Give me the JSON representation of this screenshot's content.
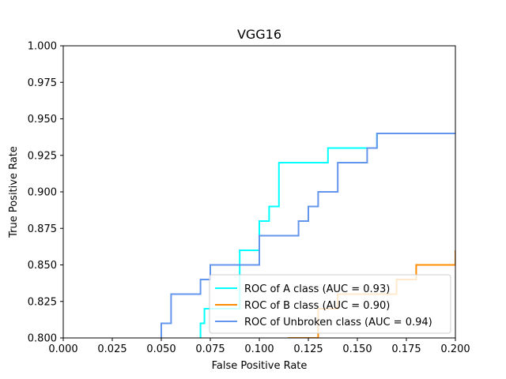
{
  "chart_data": {
    "type": "line",
    "title": "VGG16",
    "xlabel": "False Positive Rate",
    "ylabel": "True Positive Rate",
    "xlim": [
      0.0,
      0.2
    ],
    "ylim": [
      0.8,
      1.0
    ],
    "xticks": [
      "0.000",
      "0.025",
      "0.050",
      "0.075",
      "0.100",
      "0.125",
      "0.150",
      "0.175",
      "0.200"
    ],
    "yticks": [
      "0.800",
      "0.825",
      "0.850",
      "0.875",
      "0.900",
      "0.925",
      "0.950",
      "0.975",
      "1.000"
    ],
    "grid": false,
    "legend_position": "lower right",
    "series": [
      {
        "name": "ROC of A class (AUC = 0.93)",
        "color": "#00ffff",
        "points": [
          [
            0.07,
            0.79
          ],
          [
            0.07,
            0.81
          ],
          [
            0.072,
            0.81
          ],
          [
            0.072,
            0.82
          ],
          [
            0.09,
            0.82
          ],
          [
            0.09,
            0.86
          ],
          [
            0.1,
            0.86
          ],
          [
            0.1,
            0.88
          ],
          [
            0.105,
            0.88
          ],
          [
            0.105,
            0.89
          ],
          [
            0.11,
            0.89
          ],
          [
            0.11,
            0.92
          ],
          [
            0.135,
            0.92
          ],
          [
            0.135,
            0.93
          ],
          [
            0.16,
            0.93
          ],
          [
            0.16,
            0.94
          ],
          [
            0.2,
            0.94
          ]
        ]
      },
      {
        "name": "ROC of B class (AUC = 0.90)",
        "color": "#ff8c00",
        "points": [
          [
            0.115,
            0.79
          ],
          [
            0.115,
            0.8
          ],
          [
            0.13,
            0.8
          ],
          [
            0.13,
            0.82
          ],
          [
            0.14,
            0.82
          ],
          [
            0.14,
            0.83
          ],
          [
            0.17,
            0.83
          ],
          [
            0.17,
            0.84
          ],
          [
            0.18,
            0.84
          ],
          [
            0.18,
            0.85
          ],
          [
            0.2,
            0.85
          ],
          [
            0.2,
            0.86
          ]
        ]
      },
      {
        "name": "ROC of Unbroken class (AUC = 0.94)",
        "color": "#6495ed",
        "points": [
          [
            0.05,
            0.79
          ],
          [
            0.05,
            0.81
          ],
          [
            0.055,
            0.81
          ],
          [
            0.055,
            0.83
          ],
          [
            0.07,
            0.83
          ],
          [
            0.07,
            0.84
          ],
          [
            0.075,
            0.84
          ],
          [
            0.075,
            0.85
          ],
          [
            0.1,
            0.85
          ],
          [
            0.1,
            0.87
          ],
          [
            0.12,
            0.87
          ],
          [
            0.12,
            0.88
          ],
          [
            0.125,
            0.88
          ],
          [
            0.125,
            0.89
          ],
          [
            0.13,
            0.89
          ],
          [
            0.13,
            0.9
          ],
          [
            0.14,
            0.9
          ],
          [
            0.14,
            0.92
          ],
          [
            0.155,
            0.92
          ],
          [
            0.155,
            0.93
          ],
          [
            0.16,
            0.93
          ],
          [
            0.16,
            0.94
          ],
          [
            0.2,
            0.94
          ]
        ]
      }
    ]
  }
}
